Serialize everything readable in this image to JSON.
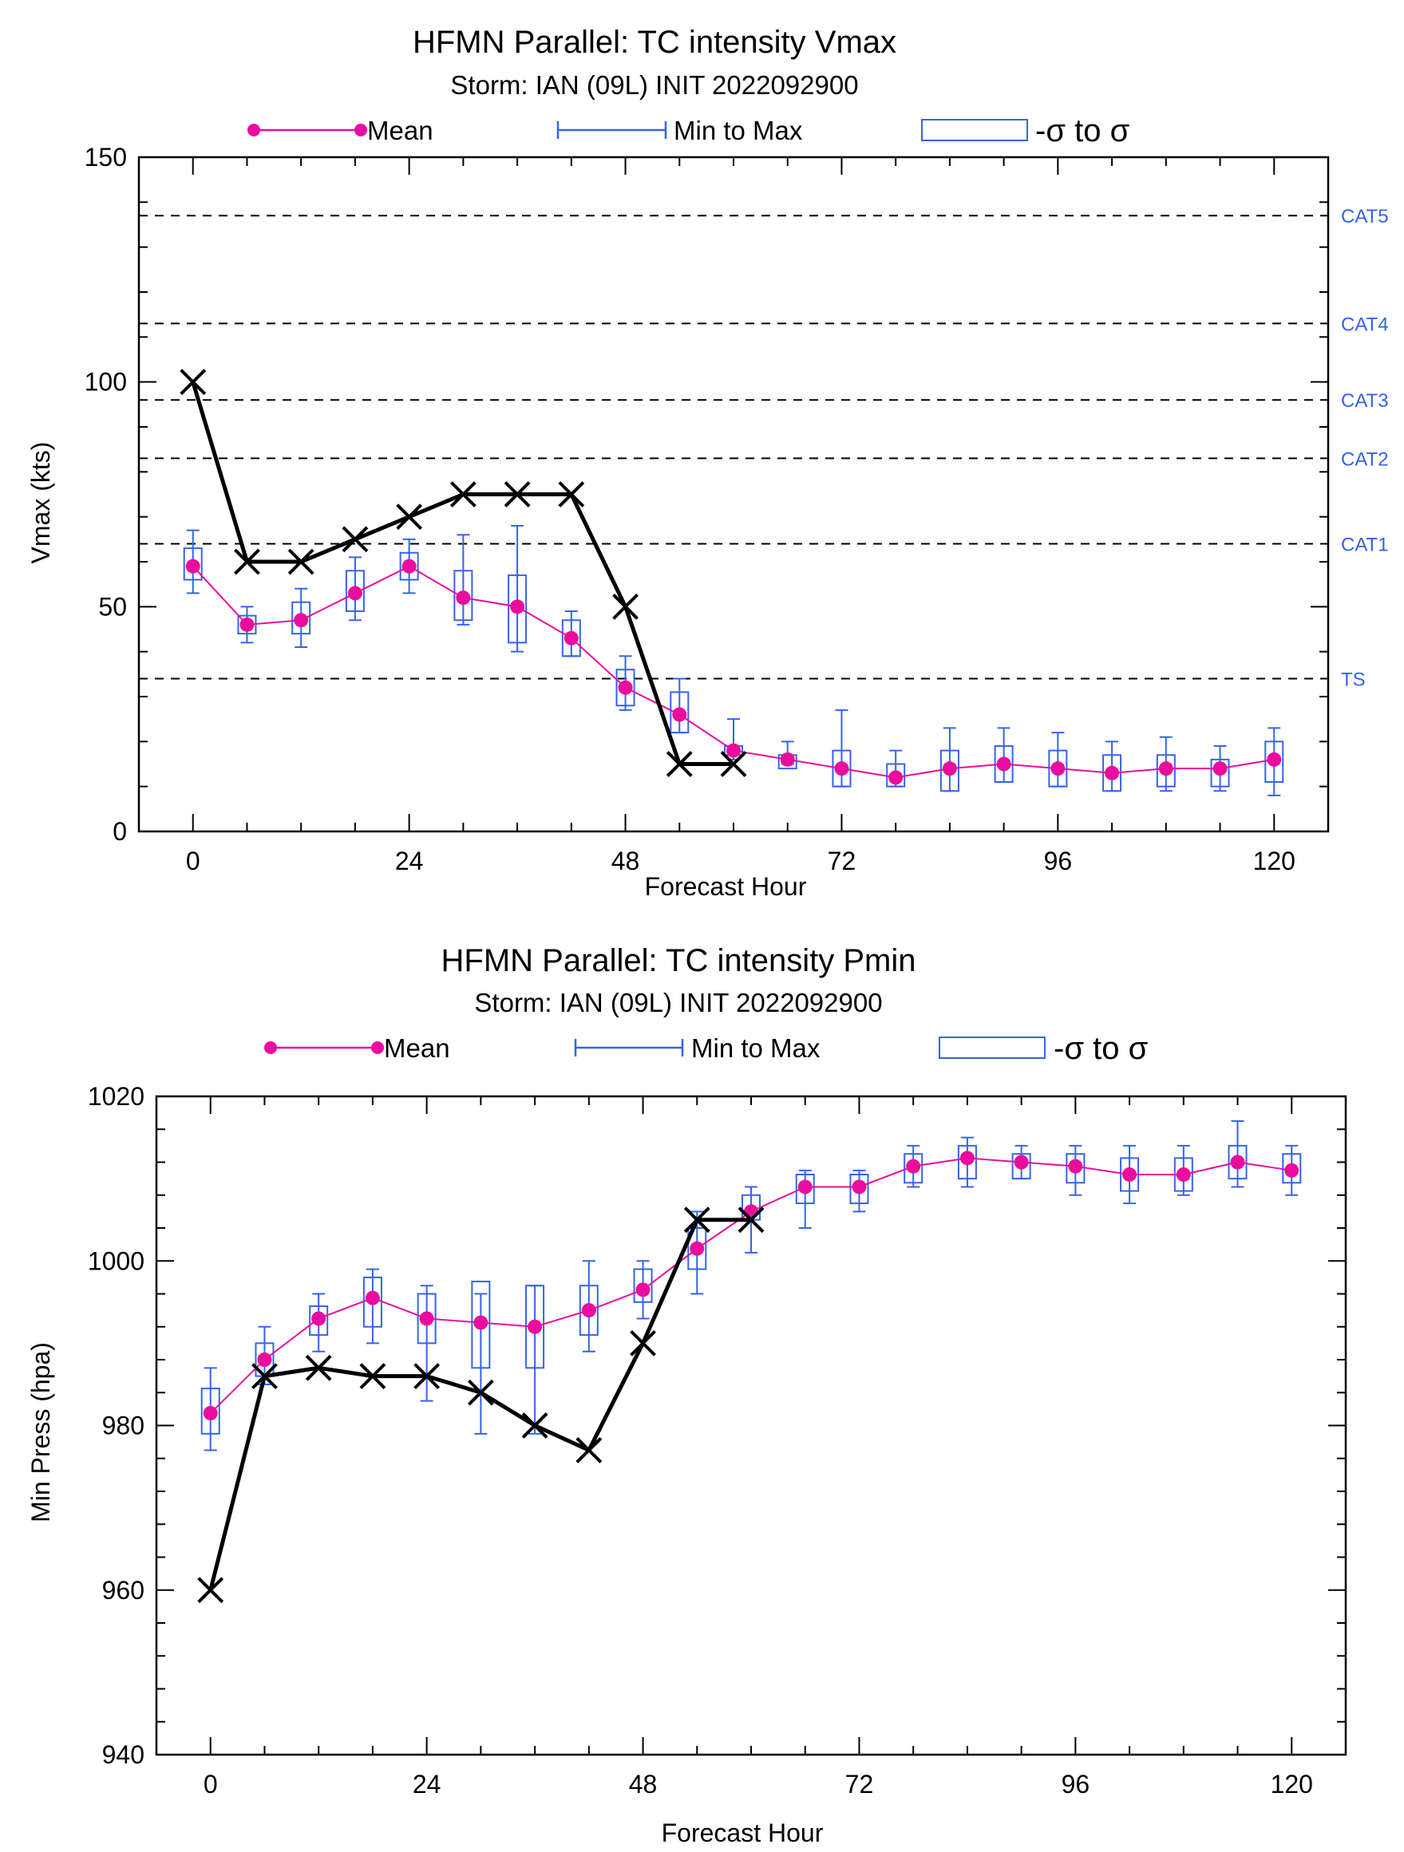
{
  "colors": {
    "mean": "#ea0c9e",
    "range": "#3564e8",
    "obs": "#000000",
    "category": "#3564e8"
  },
  "legend": {
    "mean_label": "Mean",
    "range_label": "Min to Max",
    "sigma_label": "-σ to σ"
  },
  "chart_data": [
    {
      "type": "boxplot-line",
      "title": "HFMN Parallel: TC intensity Vmax",
      "subtitle": "Storm: IAN (09L) INIT 2022092900",
      "xlabel": "Forecast Hour",
      "ylabel": "Vmax (kts)",
      "xlim": [
        -6,
        126
      ],
      "ylim": [
        0,
        150
      ],
      "xticks": [
        0,
        24,
        48,
        72,
        96,
        120
      ],
      "xtick_labels": [
        "0",
        "24",
        "48",
        "72",
        "96",
        "120"
      ],
      "yticks": [
        0,
        50,
        100,
        150
      ],
      "ytick_labels": [
        "0",
        "50",
        "100",
        "150"
      ],
      "legend_position": "top",
      "category_lines": [
        {
          "label": "TS",
          "value": 34
        },
        {
          "label": "CAT1",
          "value": 64
        },
        {
          "label": "CAT2",
          "value": 83
        },
        {
          "label": "CAT3",
          "value": 96
        },
        {
          "label": "CAT4",
          "value": 113
        },
        {
          "label": "CAT5",
          "value": 137
        }
      ],
      "forecast_hours": [
        0,
        6,
        12,
        18,
        24,
        30,
        36,
        42,
        48,
        54,
        60,
        66,
        72,
        78,
        84,
        90,
        96,
        102,
        108,
        114,
        120
      ],
      "mean": [
        59,
        46,
        47,
        53,
        59,
        52,
        50,
        43,
        32,
        26,
        18,
        16,
        14,
        12,
        14,
        15,
        14,
        13,
        14,
        14,
        16
      ],
      "min": [
        53,
        42,
        41,
        47,
        53,
        46,
        40,
        39,
        27,
        22,
        16,
        15,
        10,
        10,
        9,
        11,
        10,
        9,
        9,
        9,
        8
      ],
      "max": [
        67,
        50,
        54,
        61,
        65,
        66,
        68,
        49,
        39,
        34,
        25,
        20,
        27,
        18,
        23,
        23,
        22,
        20,
        21,
        19,
        23
      ],
      "sigma_low": [
        56,
        44,
        44,
        49,
        56,
        47,
        42,
        39,
        28,
        22,
        17,
        14,
        10,
        10,
        9,
        11,
        10,
        9,
        10,
        10,
        11
      ],
      "sigma_high": [
        63,
        48,
        51,
        58,
        62,
        58,
        57,
        47,
        36,
        31,
        19,
        17,
        18,
        15,
        18,
        19,
        18,
        17,
        17,
        16,
        20
      ],
      "observed": {
        "x": [
          0,
          6,
          12,
          18,
          24,
          30,
          36,
          42,
          48,
          54,
          60
        ],
        "y": [
          100,
          60,
          60,
          65,
          70,
          75,
          75,
          75,
          50,
          15,
          15
        ]
      }
    },
    {
      "type": "boxplot-line",
      "title": "HFMN Parallel: TC intensity Pmin",
      "subtitle": "Storm: IAN (09L) INIT 2022092900",
      "xlabel": "Forecast Hour",
      "ylabel": "Min Press (hpa)",
      "xlim": [
        -6,
        126
      ],
      "ylim": [
        940,
        1020
      ],
      "xticks": [
        0,
        24,
        48,
        72,
        96,
        120
      ],
      "xtick_labels": [
        "0",
        "24",
        "48",
        "72",
        "96",
        "120"
      ],
      "yticks": [
        940,
        960,
        980,
        1000,
        1020
      ],
      "ytick_labels": [
        "940",
        "960",
        "980",
        "1000",
        "1020"
      ],
      "legend_position": "top",
      "forecast_hours": [
        0,
        6,
        12,
        18,
        24,
        30,
        36,
        42,
        48,
        54,
        60,
        66,
        72,
        78,
        84,
        90,
        96,
        102,
        108,
        114,
        120
      ],
      "mean": [
        981.5,
        988,
        993,
        995.5,
        993,
        992.5,
        992,
        994,
        996.5,
        1001.5,
        1006,
        1009,
        1009,
        1011.5,
        1012.5,
        1012,
        1011.5,
        1010.5,
        1010.5,
        1012,
        1011
      ],
      "min": [
        977,
        985,
        989,
        990,
        983,
        979,
        979,
        989,
        993,
        996,
        1001,
        1004,
        1006,
        1009,
        1009,
        1010,
        1008,
        1007,
        1008,
        1009,
        1008
      ],
      "max": [
        987,
        992,
        996,
        999,
        997,
        996,
        997,
        1000,
        1000,
        1006,
        1009,
        1011,
        1011,
        1014,
        1015,
        1014,
        1014,
        1014,
        1014,
        1017,
        1014
      ],
      "sigma_low": [
        979,
        986,
        991,
        992,
        990,
        987,
        987,
        991,
        995,
        999,
        1005,
        1007,
        1007,
        1009.5,
        1010,
        1010,
        1009.5,
        1008.5,
        1008.5,
        1010,
        1009.5
      ],
      "sigma_high": [
        984.5,
        990,
        994.5,
        998,
        996,
        997.5,
        997,
        997,
        999,
        1004,
        1008,
        1010.5,
        1010.5,
        1013,
        1014,
        1013,
        1013,
        1012.5,
        1012.5,
        1014,
        1013
      ],
      "observed": {
        "x": [
          0,
          6,
          12,
          18,
          24,
          30,
          36,
          42,
          48,
          54,
          60
        ],
        "y": [
          960,
          986,
          987,
          986,
          986,
          984,
          980,
          977,
          990,
          1005,
          1005
        ]
      }
    }
  ]
}
